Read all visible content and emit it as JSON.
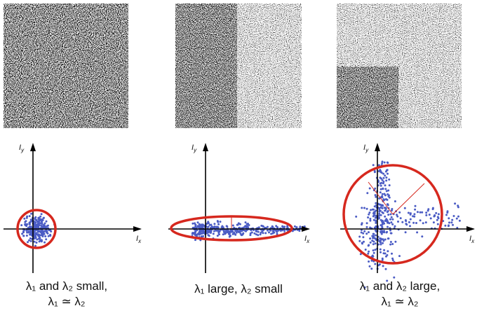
{
  "panels": [
    {
      "caption": [
        "λ₁ and λ₂ small,",
        "λ₁ ≃ λ₂"
      ],
      "x_label": {
        "base": "I",
        "sub": "x"
      },
      "y_label": {
        "base": "I",
        "sub": "y"
      }
    },
    {
      "caption": [
        "λ₁ large, λ₂ small"
      ],
      "x_label": {
        "base": "I",
        "sub": "x"
      },
      "y_label": {
        "base": "I",
        "sub": "y"
      }
    },
    {
      "caption": [
        "λ₁ and λ₂ large,",
        "λ₁ ≃ λ₂"
      ],
      "x_label": {
        "base": "I",
        "sub": "x"
      },
      "y_label": {
        "base": "I",
        "sub": "y"
      }
    }
  ]
}
